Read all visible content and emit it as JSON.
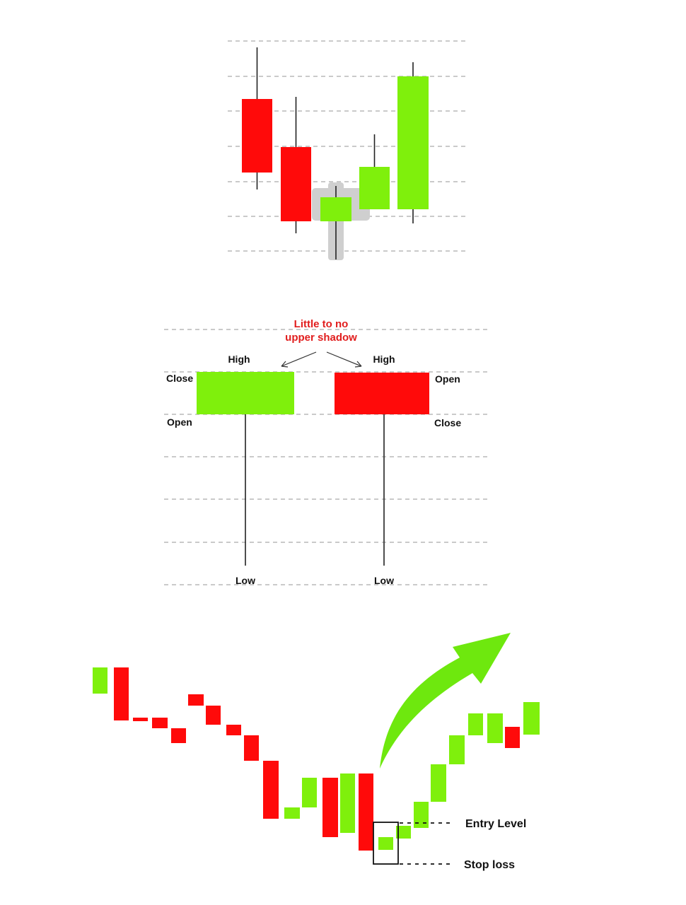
{
  "colors": {
    "bull": "#7ff00c",
    "bear": "#ff0a0a",
    "wick": "#222222",
    "highlight": "#cfcfcf",
    "grid": "#b8b8b8",
    "annotation": "#e11d1d",
    "arrow": "#6ee80e"
  },
  "panel1": {
    "candles": [
      {
        "dir": "bear"
      },
      {
        "dir": "bear"
      },
      {
        "dir": "bull",
        "highlighted": true
      },
      {
        "dir": "bull"
      },
      {
        "dir": "bull"
      }
    ]
  },
  "panel2": {
    "annotation_line1": "Little to no",
    "annotation_line2": "upper shadow",
    "bull": {
      "high": "High",
      "close": "Close",
      "open": "Open",
      "low": "Low"
    },
    "bear": {
      "high": "High",
      "open": "Open",
      "close": "Close",
      "low": "Low"
    }
  },
  "panel3": {
    "entry_label": "Entry Level",
    "stop_label": "Stop loss",
    "arrow_icon": "up-right-arrow-icon",
    "candles": [
      {
        "dir": "bull"
      },
      {
        "dir": "bear"
      },
      {
        "dir": "bear"
      },
      {
        "dir": "bear"
      },
      {
        "dir": "bear"
      },
      {
        "dir": "bear"
      },
      {
        "dir": "bear"
      },
      {
        "dir": "bear"
      },
      {
        "dir": "bear"
      },
      {
        "dir": "bear"
      },
      {
        "dir": "bull"
      },
      {
        "dir": "bull"
      },
      {
        "dir": "bear"
      },
      {
        "dir": "bull"
      },
      {
        "dir": "bear"
      },
      {
        "dir": "bull",
        "boxed": true
      },
      {
        "dir": "bull"
      },
      {
        "dir": "bull"
      },
      {
        "dir": "bull"
      },
      {
        "dir": "bull"
      },
      {
        "dir": "bull"
      },
      {
        "dir": "bull"
      },
      {
        "dir": "bear"
      },
      {
        "dir": "bull"
      },
      {
        "dir": "bull"
      }
    ]
  }
}
